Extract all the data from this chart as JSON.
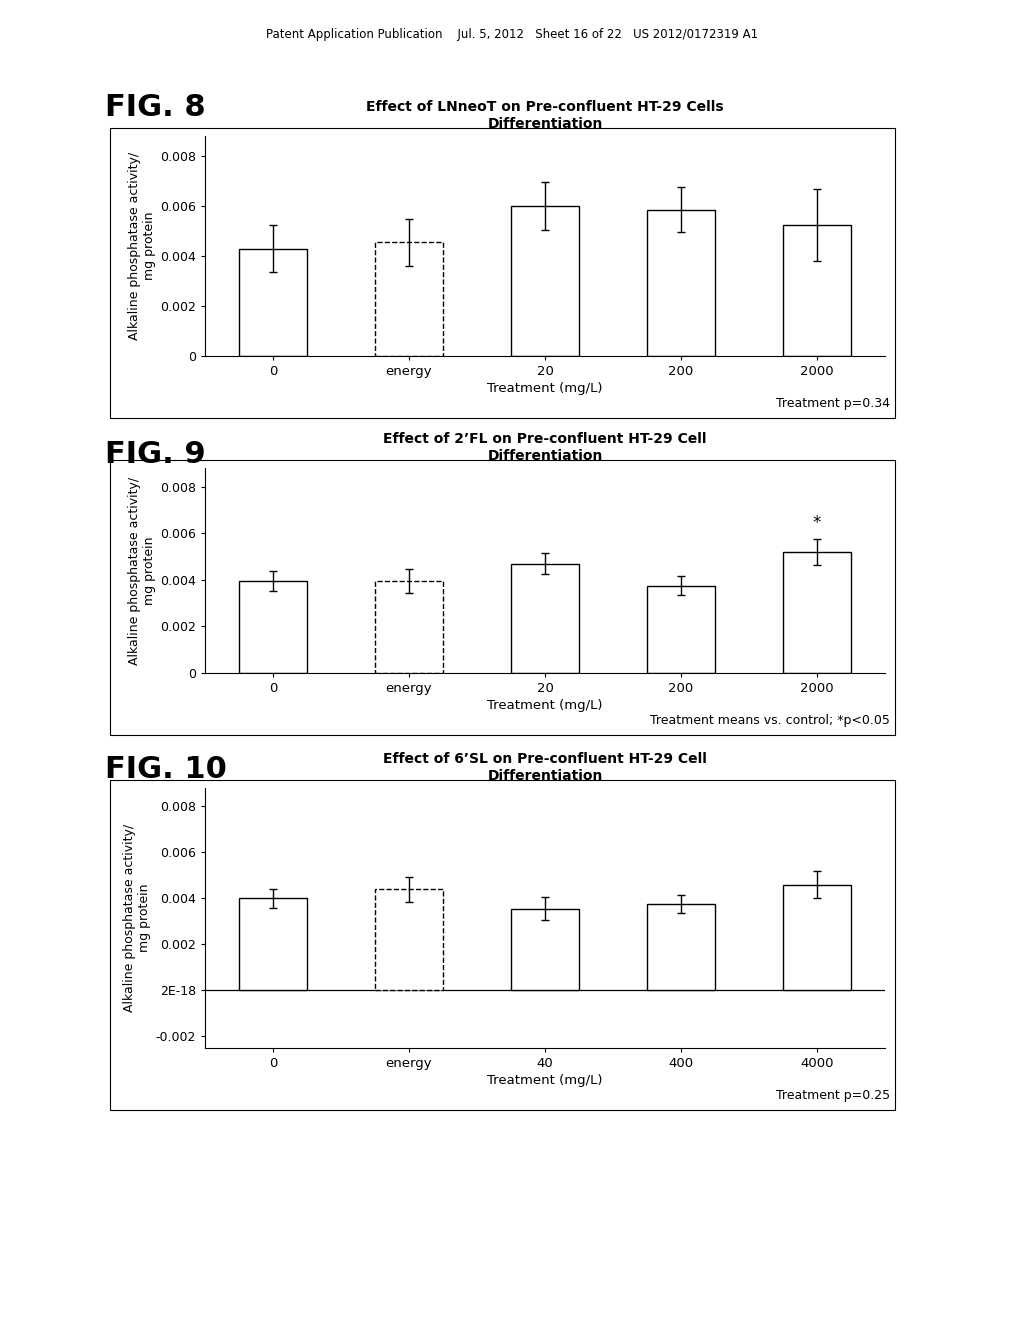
{
  "fig8": {
    "title": "Effect of LNneoT on Pre-confluent HT-29 Cells\nDifferentiation",
    "categories": [
      "0",
      "energy",
      "20",
      "200",
      "2000"
    ],
    "values": [
      0.0043,
      0.00455,
      0.006,
      0.00585,
      0.00525
    ],
    "errors": [
      0.00095,
      0.00095,
      0.00095,
      0.0009,
      0.00145
    ],
    "ylabel": "Alkaline phosphatase activity/\nmg protein",
    "xlabel": "Treatment (mg/L)",
    "footnote": "Treatment p=0.34",
    "ylim": [
      0,
      0.0088
    ],
    "ytick_vals": [
      0,
      0.002,
      0.004,
      0.006,
      0.008
    ],
    "ytick_labels": [
      "0",
      "0.002",
      "0.004",
      "0.006",
      "0.008"
    ],
    "asterisk_idx": -1,
    "fig_label": "FIG. 8"
  },
  "fig9": {
    "title": "Effect of 2’FL on Pre-confluent HT-29 Cell\nDifferentiation",
    "categories": [
      "0",
      "energy",
      "20",
      "200",
      "2000"
    ],
    "values": [
      0.00395,
      0.00395,
      0.0047,
      0.00375,
      0.0052
    ],
    "errors": [
      0.00045,
      0.0005,
      0.00045,
      0.0004,
      0.00055
    ],
    "ylabel": "Alkaline phosphatase activity/\nmg protein",
    "xlabel": "Treatment (mg/L)",
    "footnote": "Treatment means vs. control; *p<0.05",
    "ylim": [
      0,
      0.0088
    ],
    "ytick_vals": [
      0,
      0.002,
      0.004,
      0.006,
      0.008
    ],
    "ytick_labels": [
      "0",
      "0.002",
      "0.004",
      "0.006",
      "0.008"
    ],
    "asterisk_idx": 4,
    "fig_label": "FIG. 9"
  },
  "fig10": {
    "title": "Effect of 6’SL on Pre-confluent HT-29 Cell\nDifferentiation",
    "categories": [
      "0",
      "energy",
      "40",
      "400",
      "4000"
    ],
    "values": [
      0.004,
      0.0044,
      0.00355,
      0.00375,
      0.0046
    ],
    "errors": [
      0.0004,
      0.00055,
      0.0005,
      0.0004,
      0.0006
    ],
    "ylabel": "Alkaline phosphatase activity/\nmg protein",
    "xlabel": "Treatment (mg/L)",
    "footnote": "Treatment p=0.25",
    "ylim": [
      -0.0025,
      0.0088
    ],
    "ytick_vals": [
      -0.002,
      0.0,
      0.002,
      0.004,
      0.006,
      0.008
    ],
    "ytick_labels": [
      "-0.002",
      "2E-18",
      "0.002",
      "0.004",
      "0.006",
      "0.008"
    ],
    "asterisk_idx": -1,
    "has_zero_line": true,
    "fig_label": "FIG. 10"
  },
  "page_header": "Patent Application Publication    Jul. 5, 2012   Sheet 16 of 22   US 2012/0172319 A1",
  "bar_color": "#ffffff",
  "bar_edgecolor": "#000000",
  "bar_width": 0.5,
  "background_color": "#ffffff"
}
